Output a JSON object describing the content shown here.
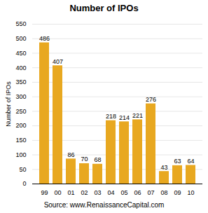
{
  "chart_data": {
    "type": "bar",
    "title": "Number of IPOs",
    "ylabel": "Number of IPOs",
    "categories": [
      "99",
      "00",
      "01",
      "02",
      "03",
      "04",
      "05",
      "06",
      "07",
      "08",
      "09",
      "10"
    ],
    "values": [
      486,
      407,
      86,
      70,
      68,
      218,
      214,
      221,
      276,
      43,
      63,
      64
    ],
    "color": "#E8A820",
    "ylim": [
      0,
      550
    ],
    "yticks": [
      0,
      50,
      100,
      150,
      200,
      250,
      300,
      350,
      400,
      450,
      500,
      550
    ],
    "grid": true,
    "data_labels": true,
    "annotations": [
      "Source: www.RenaissanceCapital.com"
    ]
  }
}
